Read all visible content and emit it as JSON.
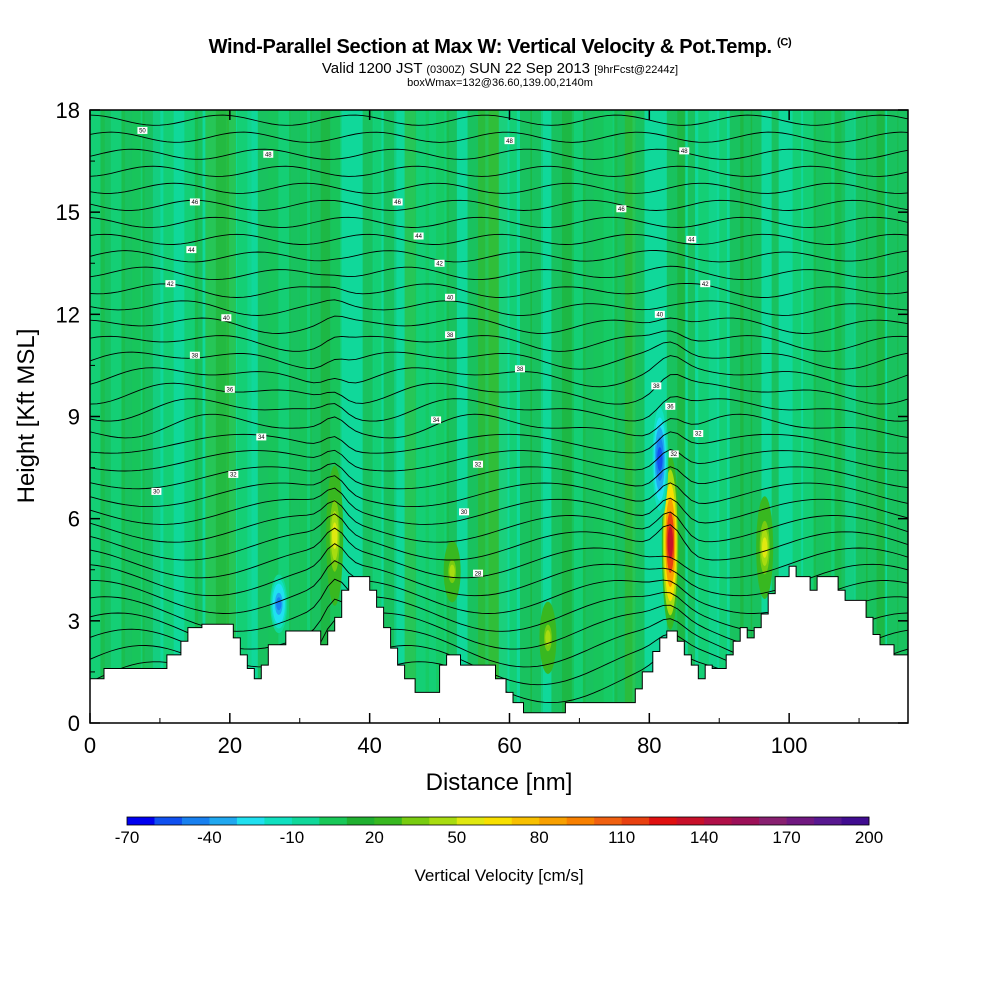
{
  "header": {
    "title": "Wind-Parallel Section at Max W: Vertical Velocity & Pot.Temp.",
    "copyright": "(C)",
    "valid_prefix": "Valid 1200 JST",
    "valid_utc": "(0300Z)",
    "valid_date": "SUN 22 Sep 2013",
    "forecast": "[9hrFcst@2244z]",
    "box_info": "boxWmax=132@36.60,139.00,2140m"
  },
  "chart_data": {
    "type": "heatmap",
    "xlabel": "Distance [nm]",
    "ylabel": "Height [Kft MSL]",
    "xlim": [
      0,
      117
    ],
    "ylim": [
      0,
      18
    ],
    "x_ticks": [
      0,
      20,
      40,
      60,
      80,
      100
    ],
    "y_ticks": [
      0,
      3,
      6,
      9,
      12,
      15,
      18
    ],
    "colorbar": {
      "label": "Vertical Velocity [cm/s]",
      "tick_labels": [
        "-70",
        "-40",
        "-10",
        "20",
        "50",
        "80",
        "110",
        "140",
        "170",
        "200"
      ],
      "min": -70,
      "max": 200,
      "step": 10,
      "colors": [
        "#0000f0",
        "#1050f0",
        "#1880f0",
        "#20a8f0",
        "#20e0f0",
        "#10e0c0",
        "#10d89a",
        "#18c858",
        "#20b030",
        "#38b820",
        "#78cc10",
        "#a8dc10",
        "#e0e810",
        "#f8e000",
        "#f8c000",
        "#f8a000",
        "#f88000",
        "#f06010",
        "#e84010",
        "#e01010",
        "#c8102a",
        "#b01048",
        "#9c1058",
        "#882070",
        "#701880",
        "#581890",
        "#400c90"
      ]
    },
    "features": [
      {
        "name": "updraft",
        "x": 35,
        "bottom_kft": 3.5,
        "top_kft": 7.5,
        "peak_cms": 55
      },
      {
        "name": "updraft",
        "x": 51.8,
        "bottom_kft": 3.6,
        "top_kft": 5.3,
        "peak_cms": 40
      },
      {
        "name": "updraft",
        "x": 65.5,
        "bottom_kft": 1.5,
        "top_kft": 3.5,
        "peak_cms": 40
      },
      {
        "name": "updraft",
        "x": 83,
        "bottom_kft": 2.8,
        "top_kft": 7.8,
        "peak_cms": 132
      },
      {
        "name": "updraft",
        "x": 96.5,
        "bottom_kft": 3.7,
        "top_kft": 6.6,
        "peak_cms": 50
      },
      {
        "name": "downdraft",
        "x": 81.5,
        "bottom_kft": 6,
        "top_kft": 9.5,
        "peak_cms": -60
      },
      {
        "name": "downdraft",
        "x": 27,
        "bottom_kft": 2.7,
        "top_kft": 4.3,
        "peak_cms": -45
      }
    ],
    "terrain_kft": [
      [
        0,
        1.3
      ],
      [
        2,
        1.3
      ],
      [
        2,
        1.6
      ],
      [
        11,
        1.6
      ],
      [
        11,
        2.0
      ],
      [
        13,
        2.0
      ],
      [
        13,
        2.4
      ],
      [
        14,
        2.4
      ],
      [
        14,
        2.8
      ],
      [
        16,
        2.8
      ],
      [
        16,
        2.9
      ],
      [
        20.5,
        2.9
      ],
      [
        20.5,
        2.5
      ],
      [
        21.5,
        2.5
      ],
      [
        21.5,
        2.0
      ],
      [
        22.5,
        2.0
      ],
      [
        22.5,
        1.6
      ],
      [
        23.5,
        1.6
      ],
      [
        23.5,
        1.3
      ],
      [
        24.5,
        1.3
      ],
      [
        24.5,
        1.7
      ],
      [
        25.5,
        1.7
      ],
      [
        25.5,
        2.3
      ],
      [
        28,
        2.3
      ],
      [
        28,
        2.7
      ],
      [
        33,
        2.7
      ],
      [
        33,
        2.3
      ],
      [
        34,
        2.3
      ],
      [
        34,
        2.7
      ],
      [
        35,
        2.7
      ],
      [
        35,
        3.1
      ],
      [
        36,
        3.1
      ],
      [
        36,
        3.9
      ],
      [
        37,
        3.9
      ],
      [
        37,
        4.3
      ],
      [
        40,
        4.3
      ],
      [
        40,
        3.9
      ],
      [
        41,
        3.9
      ],
      [
        41,
        3.4
      ],
      [
        42,
        3.4
      ],
      [
        42,
        2.8
      ],
      [
        43,
        2.8
      ],
      [
        43,
        2.2
      ],
      [
        44,
        2.2
      ],
      [
        44,
        1.7
      ],
      [
        45,
        1.7
      ],
      [
        45,
        1.3
      ],
      [
        46.5,
        1.3
      ],
      [
        46.5,
        0.9
      ],
      [
        50,
        0.9
      ],
      [
        50,
        1.7
      ],
      [
        51,
        1.7
      ],
      [
        51,
        2.0
      ],
      [
        53,
        2.0
      ],
      [
        53,
        1.7
      ],
      [
        58,
        1.7
      ],
      [
        58,
        1.3
      ],
      [
        59.5,
        1.3
      ],
      [
        59.5,
        0.9
      ],
      [
        60.5,
        0.9
      ],
      [
        60.5,
        0.6
      ],
      [
        62,
        0.6
      ],
      [
        62,
        0.3
      ],
      [
        68,
        0.3
      ],
      [
        68,
        0.6
      ],
      [
        78,
        0.6
      ],
      [
        78,
        1.0
      ],
      [
        79,
        1.0
      ],
      [
        79,
        1.5
      ],
      [
        80.5,
        1.5
      ],
      [
        80.5,
        2.1
      ],
      [
        81.5,
        2.1
      ],
      [
        81.5,
        2.5
      ],
      [
        82.5,
        2.5
      ],
      [
        82.5,
        2.7
      ],
      [
        84,
        2.7
      ],
      [
        84,
        2.4
      ],
      [
        85,
        2.4
      ],
      [
        85,
        2.0
      ],
      [
        86,
        2.0
      ],
      [
        86,
        1.7
      ],
      [
        87,
        1.7
      ],
      [
        87,
        1.3
      ],
      [
        88,
        1.3
      ],
      [
        88,
        1.7
      ],
      [
        89,
        1.7
      ],
      [
        89,
        1.6
      ],
      [
        91,
        1.6
      ],
      [
        91,
        2.0
      ],
      [
        92,
        2.0
      ],
      [
        92,
        2.4
      ],
      [
        93,
        2.4
      ],
      [
        93,
        2.8
      ],
      [
        94,
        2.8
      ],
      [
        94,
        2.5
      ],
      [
        95,
        2.5
      ],
      [
        95,
        2.8
      ],
      [
        96,
        2.8
      ],
      [
        96,
        3.2
      ],
      [
        97,
        3.2
      ],
      [
        97,
        3.8
      ],
      [
        98,
        3.8
      ],
      [
        98,
        4.3
      ],
      [
        100,
        4.3
      ],
      [
        100,
        4.6
      ],
      [
        101,
        4.6
      ],
      [
        101,
        4.3
      ],
      [
        103,
        4.3
      ],
      [
        103,
        3.9
      ],
      [
        104,
        3.9
      ],
      [
        104,
        4.3
      ],
      [
        107,
        4.3
      ],
      [
        107,
        3.9
      ],
      [
        108,
        3.9
      ],
      [
        108,
        3.6
      ],
      [
        111,
        3.6
      ],
      [
        111,
        3.1
      ],
      [
        112,
        3.1
      ],
      [
        112,
        2.6
      ],
      [
        113,
        2.6
      ],
      [
        113,
        2.3
      ],
      [
        115,
        2.3
      ],
      [
        115,
        2.0
      ],
      [
        117,
        2.0
      ]
    ],
    "contour_labels": [
      {
        "text": "50",
        "x": 7.5,
        "y": 17.4
      },
      {
        "text": "48",
        "x": 25.5,
        "y": 16.7
      },
      {
        "text": "48",
        "x": 60,
        "y": 17.1
      },
      {
        "text": "48",
        "x": 85,
        "y": 16.8
      },
      {
        "text": "46",
        "x": 15,
        "y": 15.3
      },
      {
        "text": "46",
        "x": 44,
        "y": 15.3
      },
      {
        "text": "46",
        "x": 76,
        "y": 15.1
      },
      {
        "text": "44",
        "x": 14.5,
        "y": 13.9
      },
      {
        "text": "44",
        "x": 47,
        "y": 14.3
      },
      {
        "text": "44",
        "x": 86,
        "y": 14.2
      },
      {
        "text": "42",
        "x": 50,
        "y": 13.5
      },
      {
        "text": "42",
        "x": 11.5,
        "y": 12.9
      },
      {
        "text": "42",
        "x": 88,
        "y": 12.9
      },
      {
        "text": "40",
        "x": 51.5,
        "y": 12.5
      },
      {
        "text": "40",
        "x": 19.5,
        "y": 11.9
      },
      {
        "text": "40",
        "x": 81.5,
        "y": 12.0
      },
      {
        "text": "38",
        "x": 51.5,
        "y": 11.4
      },
      {
        "text": "38",
        "x": 15,
        "y": 10.8
      },
      {
        "text": "38",
        "x": 61.5,
        "y": 10.4
      },
      {
        "text": "38",
        "x": 81,
        "y": 9.9
      },
      {
        "text": "36",
        "x": 20,
        "y": 9.8
      },
      {
        "text": "36",
        "x": 83,
        "y": 9.3
      },
      {
        "text": "34",
        "x": 49.5,
        "y": 8.9
      },
      {
        "text": "34",
        "x": 24.5,
        "y": 8.4
      },
      {
        "text": "32",
        "x": 87,
        "y": 8.5
      },
      {
        "text": "32",
        "x": 83.5,
        "y": 7.9
      },
      {
        "text": "32",
        "x": 55.5,
        "y": 7.6
      },
      {
        "text": "32",
        "x": 20.5,
        "y": 7.3
      },
      {
        "text": "30",
        "x": 9.5,
        "y": 6.8
      },
      {
        "text": "30",
        "x": 53.5,
        "y": 6.2
      },
      {
        "text": "28",
        "x": 55.5,
        "y": 4.4
      }
    ]
  }
}
